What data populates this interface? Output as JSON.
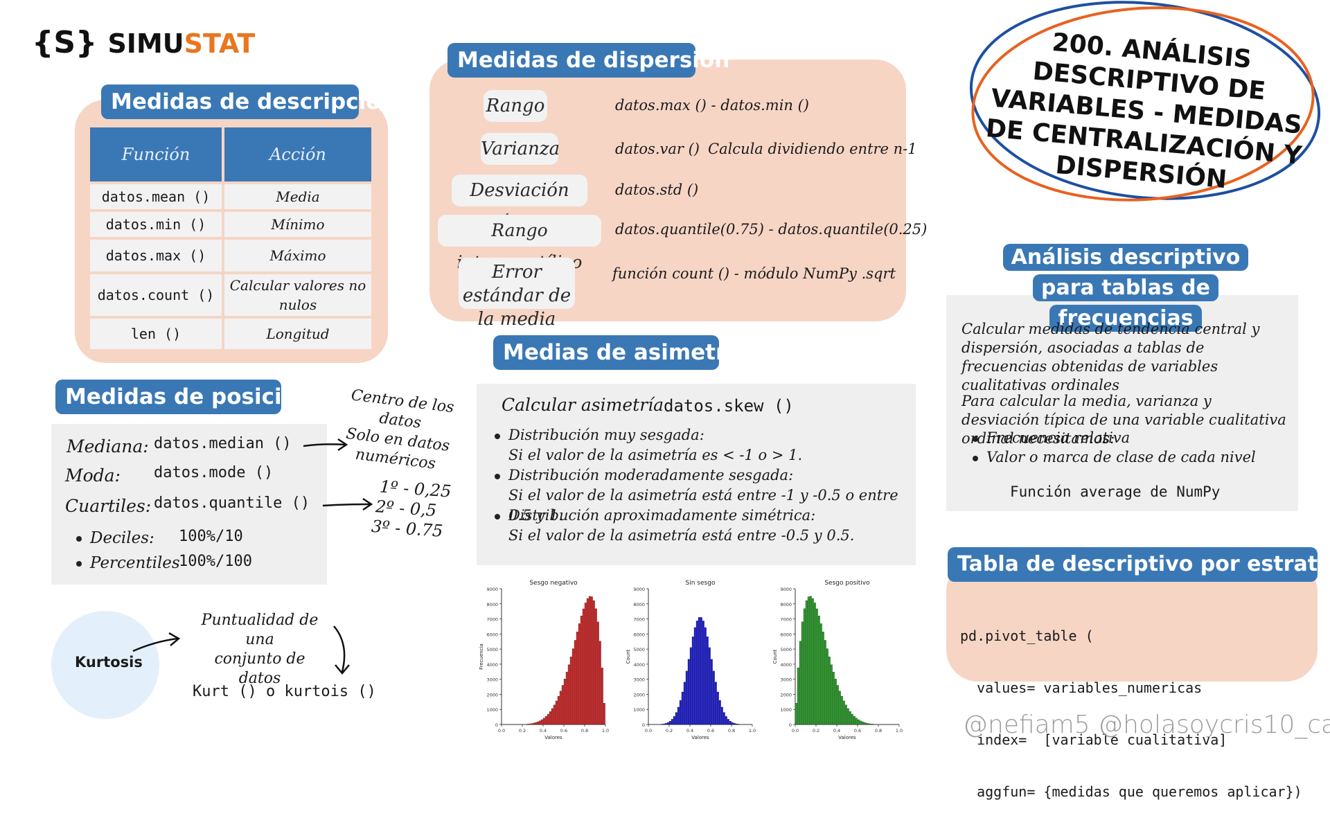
{
  "brand": {
    "prefix": "SIMU",
    "suffix": "STAT",
    "logo_glyph": "{S}"
  },
  "main_title": "200. ANÁLISIS DESCRIPTIVO DE VARIABLES - MEDIDAS DE CENTRALIZACIÓN Y DISPERSIÓN",
  "descripcion": {
    "title": "Medidas de descripción",
    "headers": [
      "Función",
      "Acción"
    ],
    "rows": [
      [
        "datos.mean ()",
        "Media"
      ],
      [
        "datos.min ()",
        "Mínimo"
      ],
      [
        "datos.max ()",
        "Máximo"
      ],
      [
        "datos.count ()",
        "Calcular valores no nulos"
      ],
      [
        "len ()",
        "Longitud"
      ]
    ]
  },
  "dispersion": {
    "title": "Medidas de dispersión",
    "items": [
      {
        "label": "Rango",
        "value": "datos.max () - datos.min ()",
        "note": ""
      },
      {
        "label": "Varianza",
        "value": "datos.var ()",
        "note": "Calcula dividiendo entre n-1"
      },
      {
        "label": "Desviación típica",
        "value": "datos.std ()",
        "note": ""
      },
      {
        "label": "Rango intercuartílico",
        "value": "datos.quantile(0.75) - datos.quantile(0.25)",
        "note": ""
      },
      {
        "label": "Error estándar de la media",
        "value": "función count () - módulo NumPy .sqrt",
        "note": ""
      }
    ]
  },
  "posicion": {
    "title": "Medidas de posición",
    "items": [
      {
        "label": "Mediana:",
        "code": "datos.median ()"
      },
      {
        "label": "Moda:",
        "code": "datos.mode ()"
      },
      {
        "label": "Cuartiles:",
        "code": "datos.quantile ()"
      }
    ],
    "bullets": [
      {
        "label": "Deciles:",
        "code": "100%/10"
      },
      {
        "label": "Percentiles",
        "code": "100%/100"
      }
    ],
    "note_median": [
      "Centro de los datos",
      "Solo en datos",
      "numéricos"
    ],
    "note_quartiles": [
      "1º - 0,25",
      "2º - 0,5",
      "3º - 0.75"
    ]
  },
  "kurtosis": {
    "label": "Kurtosis",
    "note": [
      "Puntualidad de una",
      "conjunto de datos"
    ],
    "code": "Kurt () o kurtois ()"
  },
  "asimetria": {
    "title": "Medias de asimetría",
    "calc_label": "Calcular asimetría",
    "calc_code": "datos.skew ()",
    "bullets": [
      {
        "title": "Distribución muy sesgada:",
        "text": "Si el valor de la asimetría es < -1 o > 1."
      },
      {
        "title": "Distribución moderadamente sesgada:",
        "text": "Si el valor de la asimetría está entre -1 y -0.5 o entre 0.5 y 1."
      },
      {
        "title": "Distribución aproximadamente simétrica:",
        "text": "Si el valor de la asimetría está entre -0.5 y 0.5."
      }
    ]
  },
  "chart_data": [
    {
      "type": "bar",
      "title": "Sesgo negativo",
      "xlabel": "Valores",
      "ylabel": "Frecuencia",
      "xlim": [
        0,
        1
      ],
      "ylim": [
        0,
        9000
      ],
      "color": "#d62728",
      "xticks": [
        "0.0",
        "0.2",
        "0.4",
        "0.6",
        "0.8",
        "1.0"
      ],
      "yticks": [
        "0",
        "1000",
        "2000",
        "3000",
        "4000",
        "5000",
        "6000",
        "7000",
        "8000",
        "9000"
      ],
      "shape": "negative-skew",
      "peak_x": 0.88,
      "peak_y": 8500
    },
    {
      "type": "bar",
      "title": "Sin sesgo",
      "xlabel": "Valores",
      "ylabel": "Count",
      "xlim": [
        0,
        1
      ],
      "ylim": [
        0,
        9000
      ],
      "color": "#1f1fd6",
      "xticks": [
        "0.0",
        "0.2",
        "0.4",
        "0.6",
        "0.8",
        "1.0"
      ],
      "yticks": [
        "0",
        "1000",
        "2000",
        "3000",
        "4000",
        "5000",
        "6000",
        "7000",
        "8000",
        "9000"
      ],
      "shape": "symmetric",
      "peak_x": 0.5,
      "peak_y": 7100
    },
    {
      "type": "bar",
      "title": "Sesgo positivo",
      "xlabel": "Valores",
      "ylabel": "Count",
      "xlim": [
        0,
        1
      ],
      "ylim": [
        0,
        9000
      ],
      "color": "#2ca02c",
      "xticks": [
        "0.0",
        "0.2",
        "0.4",
        "0.6",
        "0.8",
        "1.0"
      ],
      "yticks": [
        "0",
        "1000",
        "2000",
        "3000",
        "4000",
        "5000",
        "6000",
        "7000",
        "8000",
        "9000"
      ],
      "shape": "positive-skew",
      "peak_x": 0.12,
      "peak_y": 8500
    }
  ],
  "frecuencias": {
    "title": "Análisis descriptivo para tablas de frecuencias",
    "p1": "Calcular medidas de tendencia central y dispersión, asociadas a tablas de frecuencias obtenidas de variables cualitativas ordinales",
    "p2": "Para calcular la media, varianza y desviación típica de una variable cualitativa ordinal necesitamos:",
    "bullets": [
      "Frecuencia relativa",
      "Valor o marca de clase de cada nivel"
    ],
    "footer": "Función average de NumPy"
  },
  "estratos": {
    "title": "Tabla de descriptivo por estratos",
    "code": [
      "pd.pivot_table (",
      "  values= variables_numericas",
      "  index=  [variable cualitativa]",
      "  aggfun= {medidas que queremos aplicar})"
    ]
  },
  "handles": "@nefiam5 @holasoycris10_cau",
  "colors": {
    "accent": "#3a78b5",
    "peach": "#f6d5c5",
    "orange": "#e87722",
    "panel": "#efefef"
  }
}
